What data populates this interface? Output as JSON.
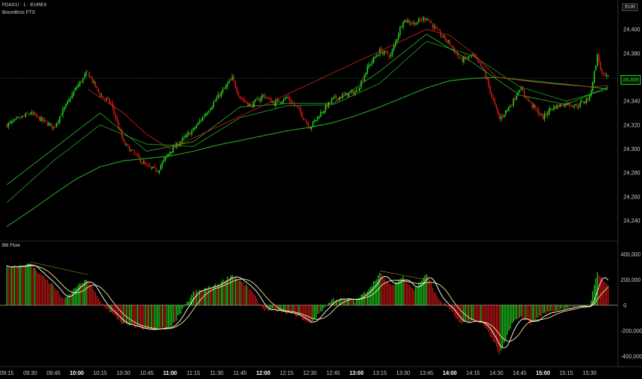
{
  "header": {
    "symbol_line": "FDAX1! · 1 · EUREX",
    "indicator_name": "BoomBros FTS",
    "currency": "EUR"
  },
  "lower_pane": {
    "title": "BB Flow"
  },
  "last_price_label": "24,359",
  "colors": {
    "background": "#000000",
    "bull": "#22e21f",
    "bear": "#e01818",
    "ma_fast_bull": "#2ecc2e",
    "ma_slow": "#28b428",
    "ma_red": "#d02020",
    "flow_line": "#ffffff",
    "flow_signal": "#f0e68c"
  },
  "chart_data": [
    {
      "type": "candlestick",
      "title": "",
      "y_ticks": [
        "24,240",
        "24,260",
        "24,280",
        "24,300",
        "24,320",
        "24,340",
        "24,360",
        "24,380",
        "24,400"
      ],
      "ylim": [
        24225,
        24420
      ],
      "last_price": 24359,
      "x_ticks": [
        "09:15",
        "09:30",
        "09:45",
        "10:00",
        "10:15",
        "10:30",
        "10:45",
        "11:00",
        "11:15",
        "11:30",
        "11:45",
        "12:00",
        "12:15",
        "12:30",
        "12:45",
        "13:00",
        "13:15",
        "13:30",
        "13:45",
        "14:00",
        "14:15",
        "14:30",
        "14:45",
        "15:00",
        "15:15",
        "15:30"
      ],
      "bold_ticks": [
        "10:00",
        "11:00",
        "12:00",
        "13:00",
        "14:00",
        "15:00"
      ],
      "price_path": [
        [
          "09:15",
          24320
        ],
        [
          "09:30",
          24330
        ],
        [
          "09:45",
          24318
        ],
        [
          "10:00",
          24352
        ],
        [
          "10:07",
          24364
        ],
        [
          "10:15",
          24345
        ],
        [
          "10:22",
          24338
        ],
        [
          "10:30",
          24305
        ],
        [
          "10:45",
          24285
        ],
        [
          "10:52",
          24282
        ],
        [
          "11:00",
          24298
        ],
        [
          "11:15",
          24316
        ],
        [
          "11:30",
          24342
        ],
        [
          "11:40",
          24359
        ],
        [
          "11:45",
          24343
        ],
        [
          "11:52",
          24336
        ],
        [
          "12:00",
          24345
        ],
        [
          "12:07",
          24338
        ],
        [
          "12:15",
          24343
        ],
        [
          "12:22",
          24334
        ],
        [
          "12:30",
          24318
        ],
        [
          "12:37",
          24330
        ],
        [
          "12:45",
          24342
        ],
        [
          "13:00",
          24348
        ],
        [
          "13:08",
          24370
        ],
        [
          "13:15",
          24382
        ],
        [
          "13:22",
          24378
        ],
        [
          "13:30",
          24408
        ],
        [
          "13:37",
          24405
        ],
        [
          "13:45",
          24410
        ],
        [
          "13:52",
          24398
        ],
        [
          "14:00",
          24388
        ],
        [
          "14:07",
          24374
        ],
        [
          "14:15",
          24378
        ],
        [
          "14:22",
          24365
        ],
        [
          "14:28",
          24340
        ],
        [
          "14:32",
          24325
        ],
        [
          "14:40",
          24338
        ],
        [
          "14:45",
          24351
        ],
        [
          "14:52",
          24338
        ],
        [
          "15:00",
          24326
        ],
        [
          "15:05",
          24334
        ],
        [
          "15:15",
          24338
        ],
        [
          "15:22",
          24336
        ],
        [
          "15:30",
          24343
        ],
        [
          "15:35",
          24378
        ],
        [
          "15:38",
          24362
        ],
        [
          "15:42",
          24359
        ]
      ],
      "moving_averages": [
        {
          "values": [
            [
              "09:15",
              24270
            ],
            [
              "09:45",
              24300
            ],
            [
              "10:15",
              24330
            ],
            [
              "10:45",
              24298
            ],
            [
              "11:15",
              24306
            ],
            [
              "11:45",
              24335
            ],
            [
              "12:15",
              24338
            ],
            [
              "12:45",
              24338
            ],
            [
              "13:15",
              24365
            ],
            [
              "13:45",
              24396
            ],
            [
              "14:15",
              24372
            ],
            [
              "14:45",
              24345
            ],
            [
              "15:15",
              24337
            ],
            [
              "15:42",
              24352
            ]
          ]
        },
        {
          "values": [
            [
              "09:15",
              24255
            ],
            [
              "09:45",
              24290
            ],
            [
              "10:15",
              24320
            ],
            [
              "10:45",
              24304
            ],
            [
              "11:15",
              24302
            ],
            [
              "11:45",
              24326
            ],
            [
              "12:15",
              24336
            ],
            [
              "12:45",
              24337
            ],
            [
              "13:15",
              24355
            ],
            [
              "13:45",
              24390
            ],
            [
              "14:15",
              24378
            ],
            [
              "14:45",
              24352
            ],
            [
              "15:15",
              24340
            ],
            [
              "15:42",
              24350
            ]
          ]
        },
        {
          "values": [
            [
              "09:15",
              24235
            ],
            [
              "09:30",
              24248
            ],
            [
              "09:45",
              24262
            ],
            [
              "10:00",
              24275
            ],
            [
              "10:15",
              24285
            ],
            [
              "10:30",
              24290
            ],
            [
              "10:45",
              24292
            ],
            [
              "11:00",
              24294
            ],
            [
              "11:15",
              24298
            ],
            [
              "11:30",
              24303
            ],
            [
              "11:45",
              24307
            ],
            [
              "12:00",
              24311
            ],
            [
              "12:15",
              24315
            ],
            [
              "12:30",
              24318
            ],
            [
              "12:45",
              24322
            ],
            [
              "13:00",
              24328
            ],
            [
              "13:15",
              24335
            ],
            [
              "13:30",
              24343
            ],
            [
              "13:45",
              24351
            ],
            [
              "14:00",
              24357
            ],
            [
              "14:15",
              24359
            ],
            [
              "14:30",
              24360
            ],
            [
              "14:45",
              24358
            ],
            [
              "15:00",
              24356
            ],
            [
              "15:15",
              24354
            ],
            [
              "15:30",
              24352
            ],
            [
              "15:42",
              24350
            ]
          ]
        },
        {
          "values": [
            [
              "10:07",
              24350
            ],
            [
              "10:30",
              24330
            ],
            [
              "10:45",
              24312
            ],
            [
              "11:00",
              24300
            ],
            [
              "13:45",
              24400
            ],
            [
              "14:00",
              24395
            ],
            [
              "14:15",
              24380
            ],
            [
              "14:30",
              24360
            ],
            [
              "15:00",
              24355
            ],
            [
              "15:30",
              24352
            ],
            [
              "15:42",
              24353
            ]
          ]
        }
      ]
    },
    {
      "type": "bar",
      "title": "BB Flow",
      "y_ticks": [
        "400,000",
        "200,000",
        "0",
        "-200,000",
        "-400,000"
      ],
      "ylim": [
        -460000,
        470000
      ],
      "flow_path": [
        [
          "09:15",
          300000
        ],
        [
          "09:30",
          320000
        ],
        [
          "09:45",
          150000
        ],
        [
          "09:52",
          40000
        ],
        [
          "10:00",
          150000
        ],
        [
          "10:07",
          200000
        ],
        [
          "10:15",
          30000
        ],
        [
          "10:22",
          -60000
        ],
        [
          "10:30",
          -150000
        ],
        [
          "10:45",
          -190000
        ],
        [
          "11:00",
          -180000
        ],
        [
          "11:07",
          -60000
        ],
        [
          "11:15",
          100000
        ],
        [
          "11:30",
          160000
        ],
        [
          "11:40",
          240000
        ],
        [
          "11:52",
          120000
        ],
        [
          "12:00",
          -30000
        ],
        [
          "12:15",
          -60000
        ],
        [
          "12:22",
          -80000
        ],
        [
          "12:30",
          -150000
        ],
        [
          "12:37",
          -50000
        ],
        [
          "12:45",
          50000
        ],
        [
          "13:00",
          40000
        ],
        [
          "13:08",
          130000
        ],
        [
          "13:15",
          250000
        ],
        [
          "13:22",
          150000
        ],
        [
          "13:30",
          220000
        ],
        [
          "13:37",
          120000
        ],
        [
          "13:45",
          250000
        ],
        [
          "13:52",
          60000
        ],
        [
          "14:00",
          -30000
        ],
        [
          "14:07",
          -150000
        ],
        [
          "14:15",
          -120000
        ],
        [
          "14:22",
          -150000
        ],
        [
          "14:28",
          -280000
        ],
        [
          "14:32",
          -390000
        ],
        [
          "14:40",
          -150000
        ],
        [
          "14:45",
          -90000
        ],
        [
          "14:52",
          -140000
        ],
        [
          "15:00",
          -70000
        ],
        [
          "15:15",
          -20000
        ],
        [
          "15:30",
          -5000
        ],
        [
          "15:35",
          260000
        ],
        [
          "15:42",
          150000
        ]
      ]
    }
  ]
}
